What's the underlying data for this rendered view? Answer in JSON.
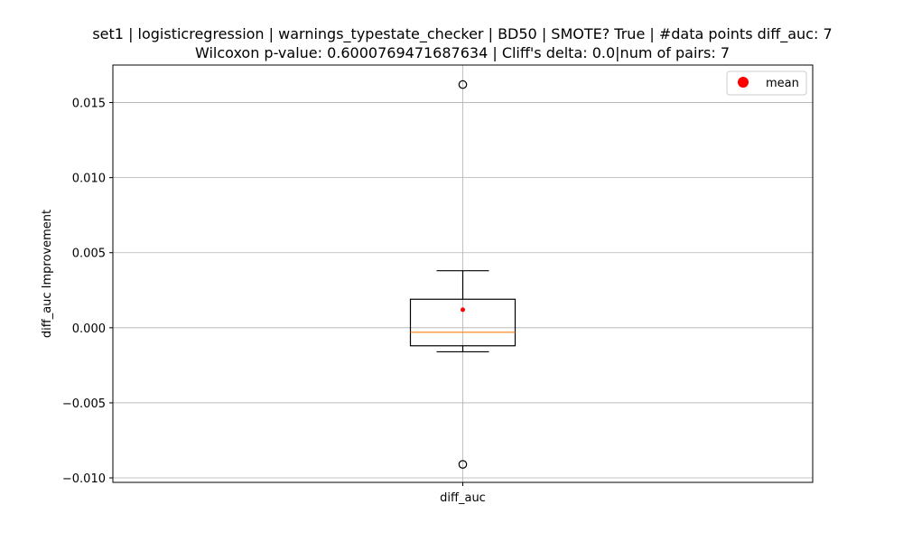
{
  "chart_data": {
    "type": "box",
    "title": "set1 | logisticregression | warnings_typestate_checker | BD50 | SMOTE? True | #data points diff_auc: 7",
    "subtitle": "Wilcoxon p-value: 0.6000769471687634 | Cliff's delta: 0.0|num of pairs: 7",
    "xlabel": "",
    "ylabel": "diff_auc Improvement",
    "categories": [
      "diff_auc"
    ],
    "ylim": [
      -0.0103,
      0.0175
    ],
    "yticks": [
      -0.01,
      -0.005,
      0.0,
      0.005,
      0.01,
      0.015
    ],
    "ytick_labels": [
      "−0.010",
      "−0.005",
      "0.000",
      "0.005",
      "0.010",
      "0.015"
    ],
    "grid": true,
    "legend": {
      "position": "top-right",
      "entries": [
        "mean"
      ]
    },
    "box": {
      "q1": -0.0012,
      "median": -0.0003,
      "q3": 0.0019,
      "whisker_low": -0.0016,
      "whisker_high": 0.0038,
      "mean": 0.0012,
      "outliers": [
        0.0162,
        -0.0091
      ]
    },
    "colors": {
      "median": "#ff7f0e",
      "mean": "#ff0000",
      "grid": "#b0b0b0"
    }
  }
}
